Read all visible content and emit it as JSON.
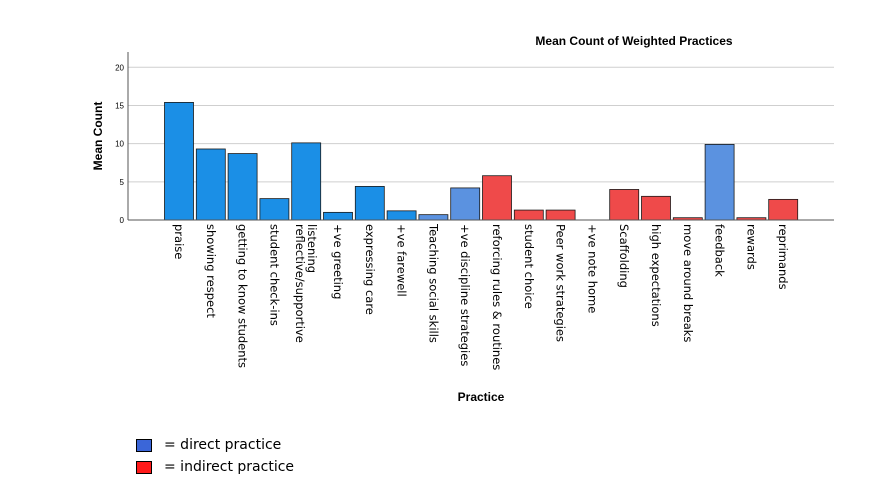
{
  "chart_data": {
    "type": "bar",
    "title": "Mean Count of Weighted Practices",
    "xlabel": "Practice",
    "ylabel": "Mean Count",
    "ylim": [
      0,
      22
    ],
    "yticks": [
      0,
      5,
      10,
      15,
      20
    ],
    "grid": true,
    "categories": [
      "praise",
      "showing respect",
      "getting to know students",
      "student check-ins",
      "reflective/supportive listening",
      "+ve greeting",
      "expressing care",
      "+ve farewell",
      "Teaching social skills",
      "+ve discipline strategies",
      "reforcing rules & routines",
      "student choice",
      "Peer work strategies",
      "+ve note home",
      "Scaffolding",
      "high expectations",
      "move around breaks",
      "feedback",
      "rewards",
      "reprimands"
    ],
    "values": [
      15.4,
      9.3,
      8.7,
      2.8,
      10.1,
      1.0,
      4.4,
      1.2,
      0.7,
      4.2,
      5.8,
      1.3,
      1.3,
      0,
      4.0,
      3.1,
      0.3,
      9.9,
      0.3,
      2.7
    ],
    "bar_colors": [
      "#1b8fe6",
      "#1b8fe6",
      "#1b8fe6",
      "#1b8fe6",
      "#1b8fe6",
      "#1b8fe6",
      "#1b8fe6",
      "#1b8fe6",
      "#5b92e0",
      "#5b92e0",
      "#ef4a4a",
      "#ef4a4a",
      "#ef4a4a",
      "#ef4a4a",
      "#ef4a4a",
      "#ef4a4a",
      "#ef4a4a",
      "#5b92e0",
      "#ef4a4a",
      "#ef4a4a"
    ],
    "legend": [
      {
        "label": "= direct practice",
        "color": "#3b66d8"
      },
      {
        "label": "= indirect practice",
        "color": "#ff1a1a"
      }
    ]
  }
}
